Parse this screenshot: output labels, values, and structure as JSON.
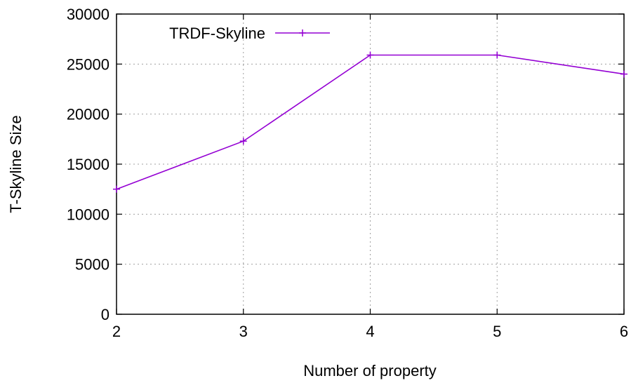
{
  "chart_data": {
    "type": "line",
    "title": "",
    "xlabel": "Number of property",
    "ylabel": "T-Skyline Size",
    "x": [
      2,
      3,
      4,
      5,
      6
    ],
    "xlim": [
      2,
      6
    ],
    "ylim": [
      0,
      30000
    ],
    "xticks": [
      "2",
      "3",
      "4",
      "5",
      "6"
    ],
    "yticks": [
      "0",
      "5000",
      "10000",
      "15000",
      "20000",
      "25000",
      "30000"
    ],
    "grid": true,
    "legend_position": "top-left",
    "series": [
      {
        "name": "TRDF-Skyline",
        "values": [
          12500,
          17300,
          25900,
          25900,
          24000
        ],
        "color": "#9400d3",
        "marker": "plus"
      }
    ]
  }
}
